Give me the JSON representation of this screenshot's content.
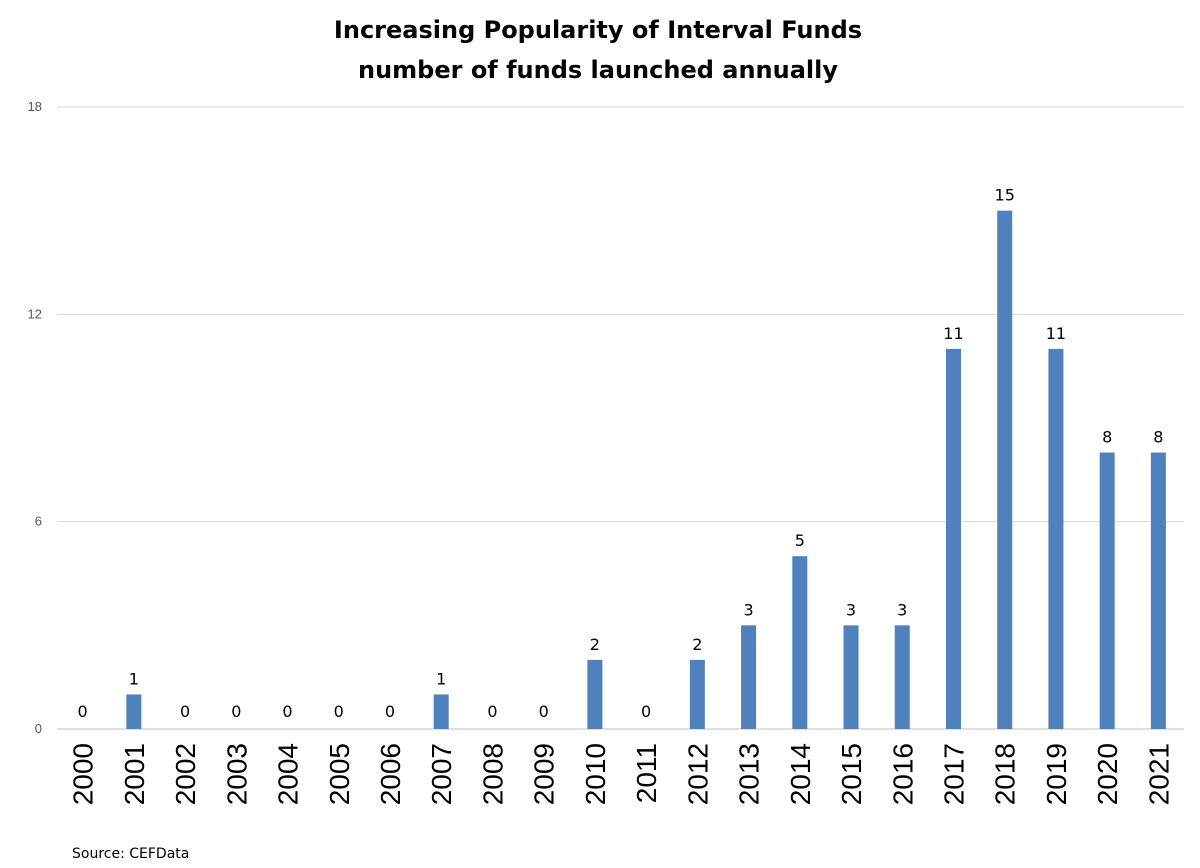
{
  "chart_data": {
    "type": "bar",
    "title": "Increasing Popularity of Interval Funds",
    "subtitle": "number of funds launched annually",
    "categories": [
      "2000",
      "2001",
      "2002",
      "2003",
      "2004",
      "2005",
      "2006",
      "2007",
      "2008",
      "2009",
      "2010",
      "2011",
      "2012",
      "2013",
      "2014",
      "2015",
      "2016",
      "2017",
      "2018",
      "2019",
      "2020",
      "2021"
    ],
    "values": [
      0,
      1,
      0,
      0,
      0,
      0,
      0,
      1,
      0,
      0,
      2,
      0,
      2,
      3,
      5,
      3,
      3,
      11,
      15,
      11,
      8,
      8
    ],
    "xlabel": "",
    "ylabel": "",
    "ylim": [
      0,
      18
    ],
    "yticks": [
      0,
      6,
      12,
      18
    ],
    "grid": true,
    "legend": "none",
    "bar_color": "#4f81bd",
    "data_labels": true
  },
  "source": "Source: CEFData"
}
